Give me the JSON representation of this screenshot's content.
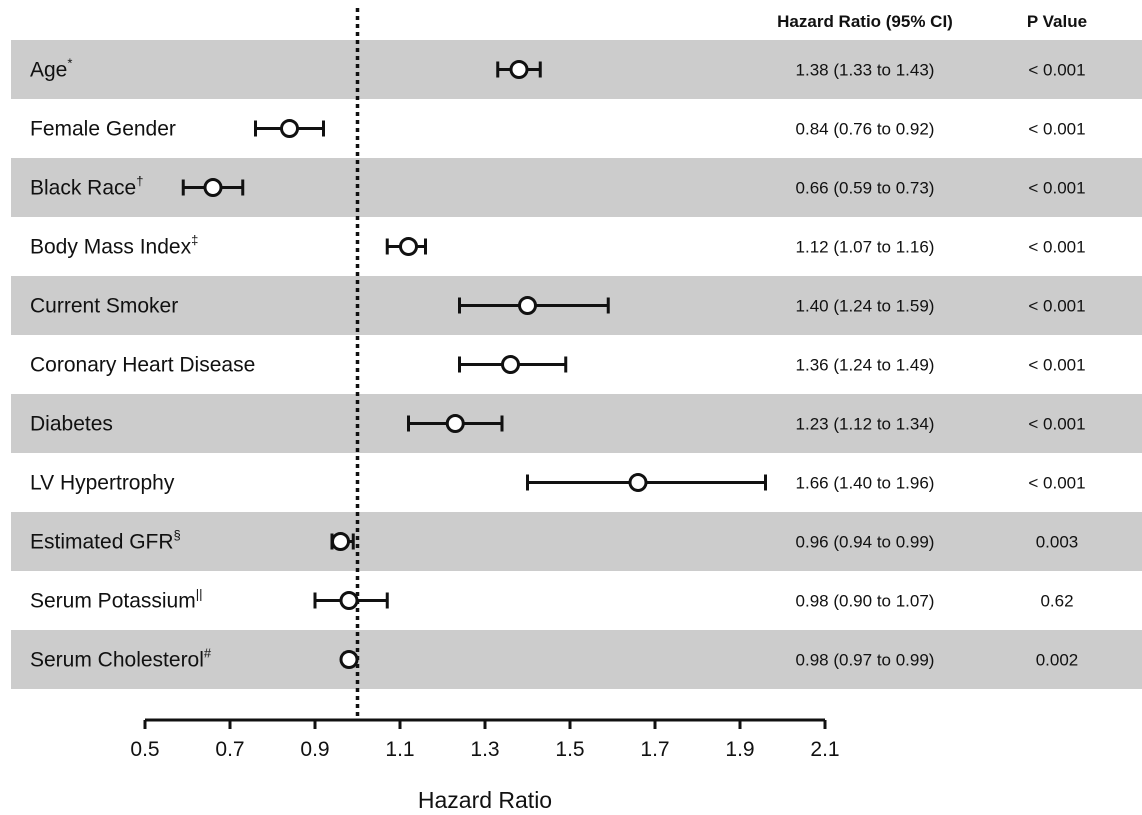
{
  "chart_data": {
    "type": "forest",
    "xlabel": "Hazard Ratio",
    "xlim": [
      0.5,
      2.1
    ],
    "xticks": [
      "0.5",
      "0.7",
      "0.9",
      "1.1",
      "1.3",
      "1.5",
      "1.7",
      "1.9",
      "2.1"
    ],
    "reference_line": 1.0,
    "column_headers": {
      "hr": "Hazard Ratio (95% CI)",
      "p": "P Value"
    },
    "rows": [
      {
        "label": "Age",
        "mark": "*",
        "hr": 1.38,
        "lo": 1.33,
        "hi": 1.43,
        "hr_text": "1.38 (1.33 to 1.43)",
        "p": "< 0.001"
      },
      {
        "label": "Female Gender",
        "mark": "",
        "hr": 0.84,
        "lo": 0.76,
        "hi": 0.92,
        "hr_text": "0.84 (0.76 to 0.92)",
        "p": "< 0.001"
      },
      {
        "label": "Black Race",
        "mark": "†",
        "hr": 0.66,
        "lo": 0.59,
        "hi": 0.73,
        "hr_text": "0.66 (0.59 to 0.73)",
        "p": "< 0.001"
      },
      {
        "label": "Body Mass Index",
        "mark": "‡",
        "hr": 1.12,
        "lo": 1.07,
        "hi": 1.16,
        "hr_text": "1.12 (1.07 to 1.16)",
        "p": "< 0.001"
      },
      {
        "label": "Current Smoker",
        "mark": "",
        "hr": 1.4,
        "lo": 1.24,
        "hi": 1.59,
        "hr_text": "1.40 (1.24 to 1.59)",
        "p": "< 0.001"
      },
      {
        "label": "Coronary Heart Disease",
        "mark": "",
        "hr": 1.36,
        "lo": 1.24,
        "hi": 1.49,
        "hr_text": "1.36 (1.24 to 1.49)",
        "p": "< 0.001"
      },
      {
        "label": "Diabetes",
        "mark": "",
        "hr": 1.23,
        "lo": 1.12,
        "hi": 1.34,
        "hr_text": "1.23 (1.12 to 1.34)",
        "p": "< 0.001"
      },
      {
        "label": "LV Hypertrophy",
        "mark": "",
        "hr": 1.66,
        "lo": 1.4,
        "hi": 1.96,
        "hr_text": "1.66 (1.40 to 1.96)",
        "p": "< 0.001"
      },
      {
        "label": "Estimated GFR",
        "mark": "§",
        "hr": 0.96,
        "lo": 0.94,
        "hi": 0.99,
        "hr_text": "0.96 (0.94 to 0.99)",
        "p": "0.003"
      },
      {
        "label": "Serum Potassium",
        "mark": "||",
        "hr": 0.98,
        "lo": 0.9,
        "hi": 1.07,
        "hr_text": "0.98 (0.90 to 1.07)",
        "p": "0.62"
      },
      {
        "label": "Serum Cholesterol",
        "mark": "#",
        "hr": 0.98,
        "lo": 0.97,
        "hi": 0.99,
        "hr_text": "0.98 (0.97 to 0.99)",
        "p": "0.002"
      }
    ],
    "colors": {
      "band": "#cccccc",
      "ink": "#111111",
      "marker_fill": "#ffffff"
    }
  }
}
